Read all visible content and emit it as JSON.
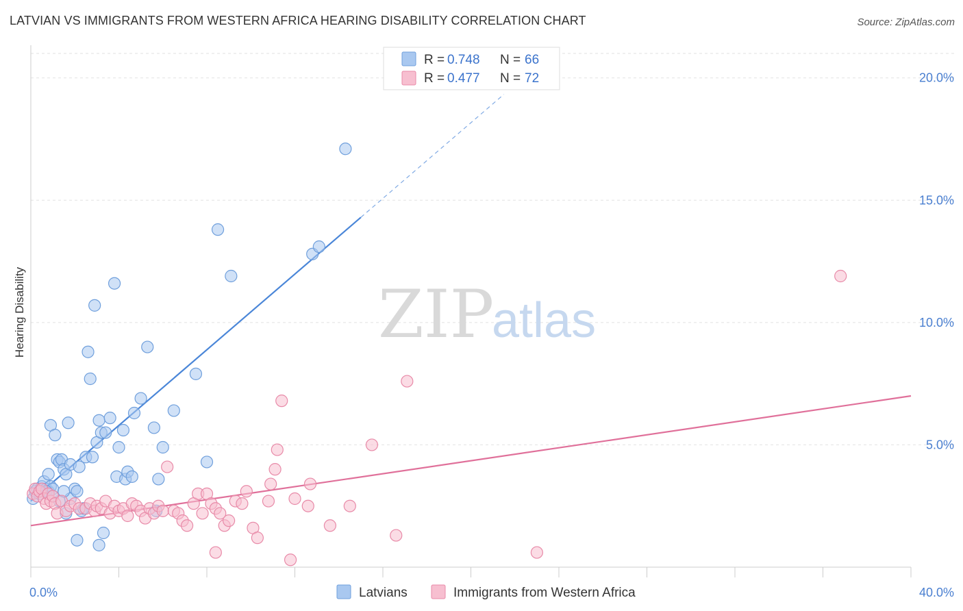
{
  "title": "LATVIAN VS IMMIGRANTS FROM WESTERN AFRICA HEARING DISABILITY CORRELATION CHART",
  "source": "Source: ZipAtlas.com",
  "watermark": {
    "zip": "ZIP",
    "atlas": "atlas"
  },
  "legend": {
    "r_label": "R =",
    "n_label": "N =",
    "rows": [
      {
        "r": "0.748",
        "n": "66",
        "color": "#a9c8f0",
        "stroke": "#6f9fdc"
      },
      {
        "r": "0.477",
        "n": "72",
        "color": "#f7bfd0",
        "stroke": "#e88aa8"
      }
    ]
  },
  "bottom_legend": [
    {
      "label": "Latvians",
      "color": "#a9c8f0",
      "stroke": "#6f9fdc"
    },
    {
      "label": "Immigrants from Western Africa",
      "color": "#f7bfd0",
      "stroke": "#e88aa8"
    }
  ],
  "chart_data": {
    "type": "scatter",
    "xlabel": "",
    "ylabel": "Hearing Disability",
    "xlim": [
      0,
      40
    ],
    "ylim": [
      0,
      21
    ],
    "x_tick_labels": [
      "0.0%",
      "40.0%"
    ],
    "y_ticks": [
      5,
      10,
      15,
      20
    ],
    "y_tick_labels": [
      "5.0%",
      "10.0%",
      "15.0%",
      "20.0%"
    ],
    "grid": true,
    "legend_position": "top-center",
    "series": [
      {
        "name": "Latvians",
        "color": "#4a86d8",
        "trend": {
          "x0": 0,
          "y0": 2.7,
          "x1": 15.0,
          "y1": 14.3,
          "dash_to_x": 21.5
        },
        "points": [
          [
            0.1,
            2.8
          ],
          [
            0.2,
            3.1
          ],
          [
            0.3,
            3.2
          ],
          [
            0.4,
            3.0
          ],
          [
            0.5,
            3.3
          ],
          [
            0.6,
            3.5
          ],
          [
            0.7,
            3.2
          ],
          [
            0.8,
            3.1
          ],
          [
            0.9,
            3.3
          ],
          [
            1.0,
            3.2
          ],
          [
            0.8,
            3.8
          ],
          [
            0.9,
            5.8
          ],
          [
            1.1,
            5.4
          ],
          [
            1.2,
            4.4
          ],
          [
            1.3,
            4.3
          ],
          [
            1.4,
            4.4
          ],
          [
            1.5,
            4.0
          ],
          [
            1.6,
            3.8
          ],
          [
            1.7,
            5.9
          ],
          [
            1.8,
            4.2
          ],
          [
            1.3,
            2.7
          ],
          [
            1.6,
            2.2
          ],
          [
            1.8,
            2.8
          ],
          [
            2.0,
            3.2
          ],
          [
            2.1,
            3.1
          ],
          [
            2.2,
            4.1
          ],
          [
            2.3,
            2.3
          ],
          [
            2.5,
            4.5
          ],
          [
            2.6,
            8.8
          ],
          [
            2.7,
            7.7
          ],
          [
            2.8,
            4.5
          ],
          [
            2.9,
            10.7
          ],
          [
            3.0,
            5.1
          ],
          [
            3.1,
            6.0
          ],
          [
            3.2,
            5.5
          ],
          [
            3.4,
            5.5
          ],
          [
            3.6,
            6.1
          ],
          [
            3.8,
            11.6
          ],
          [
            3.9,
            3.7
          ],
          [
            4.0,
            4.9
          ],
          [
            4.2,
            5.6
          ],
          [
            4.3,
            3.6
          ],
          [
            4.4,
            3.9
          ],
          [
            4.6,
            3.7
          ],
          [
            4.7,
            6.3
          ],
          [
            5.0,
            6.9
          ],
          [
            5.3,
            9.0
          ],
          [
            5.6,
            5.7
          ],
          [
            5.8,
            3.6
          ],
          [
            6.0,
            4.9
          ],
          [
            6.5,
            6.4
          ],
          [
            7.5,
            7.9
          ],
          [
            8.0,
            4.3
          ],
          [
            8.5,
            13.8
          ],
          [
            9.1,
            11.9
          ],
          [
            12.8,
            12.8
          ],
          [
            13.1,
            13.1
          ],
          [
            14.3,
            17.1
          ],
          [
            2.1,
            1.1
          ],
          [
            3.1,
            0.9
          ],
          [
            3.3,
            1.4
          ],
          [
            0.7,
            3.1
          ],
          [
            1.0,
            2.9
          ],
          [
            5.7,
            2.3
          ],
          [
            2.4,
            2.4
          ],
          [
            1.5,
            3.1
          ]
        ]
      },
      {
        "name": "Immigrants from Western Africa",
        "color": "#e0709a",
        "trend": {
          "x0": 0,
          "y0": 1.7,
          "x1": 40,
          "y1": 7.0
        },
        "points": [
          [
            0.1,
            3.0
          ],
          [
            0.2,
            3.2
          ],
          [
            0.3,
            2.9
          ],
          [
            0.4,
            3.1
          ],
          [
            0.5,
            3.2
          ],
          [
            0.6,
            2.8
          ],
          [
            0.7,
            2.6
          ],
          [
            0.8,
            3.0
          ],
          [
            0.9,
            2.7
          ],
          [
            1.0,
            2.9
          ],
          [
            1.1,
            2.6
          ],
          [
            1.2,
            2.2
          ],
          [
            1.4,
            2.7
          ],
          [
            1.6,
            2.3
          ],
          [
            1.8,
            2.5
          ],
          [
            2.0,
            2.6
          ],
          [
            2.2,
            2.4
          ],
          [
            2.5,
            2.4
          ],
          [
            2.7,
            2.6
          ],
          [
            2.9,
            2.3
          ],
          [
            3.0,
            2.5
          ],
          [
            3.2,
            2.4
          ],
          [
            3.4,
            2.7
          ],
          [
            3.6,
            2.2
          ],
          [
            3.8,
            2.5
          ],
          [
            4.0,
            2.3
          ],
          [
            4.2,
            2.4
          ],
          [
            4.4,
            2.1
          ],
          [
            4.6,
            2.6
          ],
          [
            4.8,
            2.5
          ],
          [
            5.0,
            2.3
          ],
          [
            5.2,
            2.0
          ],
          [
            5.4,
            2.4
          ],
          [
            5.6,
            2.2
          ],
          [
            5.8,
            2.5
          ],
          [
            6.0,
            2.3
          ],
          [
            6.2,
            4.1
          ],
          [
            6.5,
            2.3
          ],
          [
            6.7,
            2.2
          ],
          [
            6.9,
            1.9
          ],
          [
            7.1,
            1.7
          ],
          [
            7.4,
            2.6
          ],
          [
            7.6,
            3.0
          ],
          [
            7.8,
            2.2
          ],
          [
            8.0,
            3.0
          ],
          [
            8.2,
            2.6
          ],
          [
            8.4,
            2.4
          ],
          [
            8.6,
            2.2
          ],
          [
            8.8,
            1.7
          ],
          [
            9.0,
            1.9
          ],
          [
            9.3,
            2.7
          ],
          [
            9.6,
            2.6
          ],
          [
            9.8,
            3.1
          ],
          [
            10.1,
            1.6
          ],
          [
            10.3,
            1.2
          ],
          [
            10.8,
            2.7
          ],
          [
            10.9,
            3.4
          ],
          [
            11.1,
            4.0
          ],
          [
            11.2,
            4.8
          ],
          [
            11.4,
            6.8
          ],
          [
            12.0,
            2.8
          ],
          [
            12.6,
            2.5
          ],
          [
            12.7,
            3.4
          ],
          [
            13.6,
            1.7
          ],
          [
            14.5,
            2.5
          ],
          [
            15.5,
            5.0
          ],
          [
            16.6,
            1.3
          ],
          [
            17.1,
            7.6
          ],
          [
            23.0,
            0.6
          ],
          [
            36.8,
            11.9
          ],
          [
            8.4,
            0.6
          ],
          [
            11.8,
            0.3
          ]
        ]
      }
    ]
  }
}
